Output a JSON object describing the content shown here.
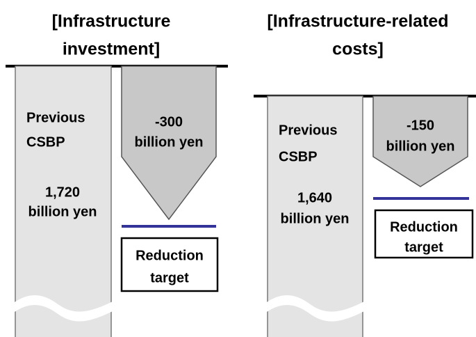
{
  "panels": [
    {
      "title": [
        "[Infrastructure",
        "investment]"
      ],
      "previous_label": [
        "Previous",
        "CSBP"
      ],
      "previous_amount": [
        "1,720",
        "billion yen"
      ],
      "reduction_amount": [
        "-300",
        "billion yen"
      ],
      "target_label": [
        "Reduction",
        "target"
      ]
    },
    {
      "title": [
        "[Infrastructure-related",
        "costs]"
      ],
      "previous_label": [
        "Previous",
        "CSBP"
      ],
      "previous_amount": [
        "1,640",
        "billion yen"
      ],
      "reduction_amount": [
        "-150",
        "billion yen"
      ],
      "target_label": [
        "Reduction",
        "target"
      ]
    }
  ]
}
